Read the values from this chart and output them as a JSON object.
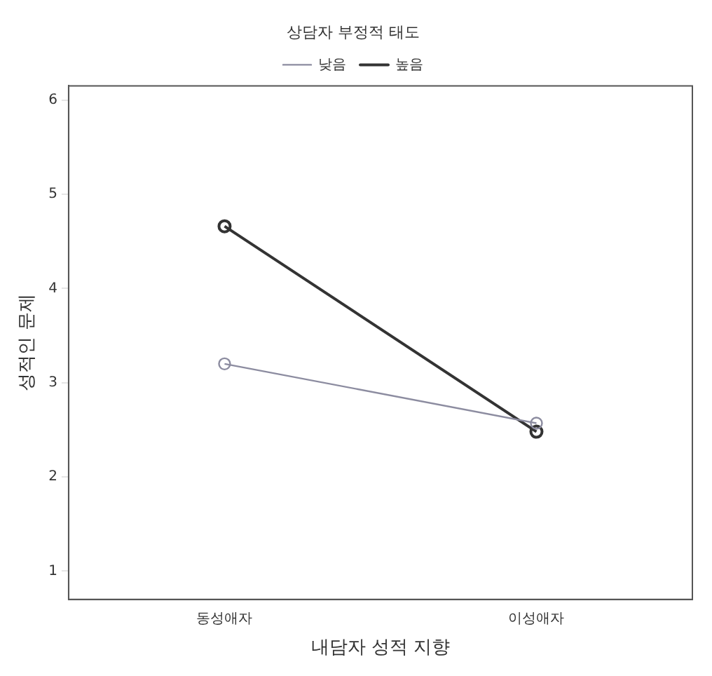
{
  "chart_data": {
    "type": "line",
    "xlabel": "내담자 성적 지향",
    "ylabel": "성적인 문제",
    "legend_title": "상담자 부정적 태도",
    "categories": [
      "동성애자",
      "이성애자"
    ],
    "series": [
      {
        "name": "낮음",
        "color": "#8c8ca0",
        "values": [
          3.2,
          2.57
        ]
      },
      {
        "name": "높음",
        "color": "#333333",
        "values": [
          4.66,
          2.48
        ]
      }
    ],
    "ylim": [
      0.7,
      6.15
    ],
    "yticks": [
      1,
      2,
      3,
      4,
      5,
      6
    ],
    "grid": false,
    "legend": "top right",
    "marker": "circle",
    "line_style": "solid"
  }
}
